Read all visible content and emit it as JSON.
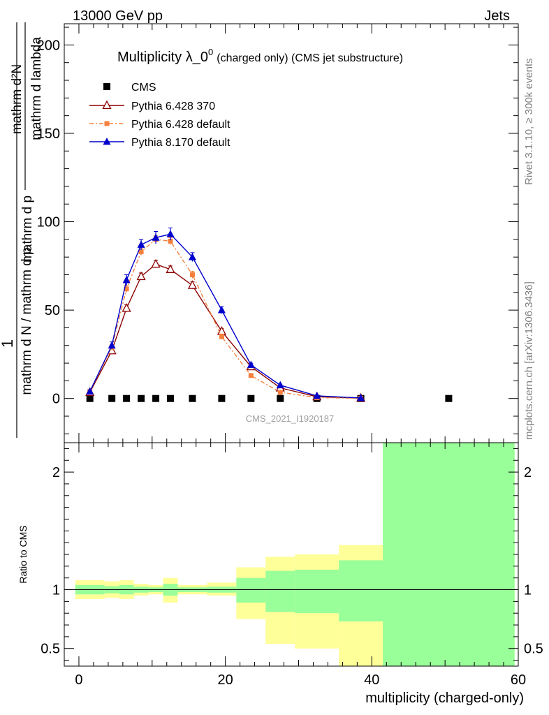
{
  "header": {
    "energy": "13000 GeV pp",
    "category": "Jets"
  },
  "side_labels": {
    "rivet": "Rivet 3.1.10, ≥ 300k events",
    "mcplots": "mcplots.cern.ch [arXiv:1306.3436]"
  },
  "watermark": "CMS_2021_I1920187",
  "colors": {
    "cms": "#000000",
    "pythia6_370": "#8b0000",
    "pythia6_default": "#f5803e",
    "pythia8_default": "#0000cc",
    "band_outer": "#ffff99",
    "band_inner": "#99ff99"
  },
  "chart_data": [
    {
      "type": "line",
      "title_main": "Multiplicity λ_0",
      "title_sup": "0",
      "title_suffix": "(charged only) (CMS jet substructure)",
      "ylabel_numerator": "1",
      "ylabel_denominator": "mathrm d N / mathrm d p",
      "ylabel_middle": "mathrm d p",
      "ylabel_main_numerator": "mathrm d²N",
      "ylabel_main_denominator": "mathrm d lambda",
      "xlim": [
        -2,
        60
      ],
      "ylim": [
        -25,
        212
      ],
      "yticks": [
        0,
        50,
        100,
        150,
        200
      ],
      "ytick_labels": [
        "0",
        "50",
        "100",
        "150",
        "200"
      ],
      "legend_position": "top-left",
      "series": [
        {
          "name": "CMS",
          "marker": "square",
          "x": [
            1.5,
            4.5,
            6.5,
            8.5,
            10.5,
            12.5,
            15.5,
            19.5,
            23.5,
            27.5,
            32.5,
            38.5,
            50.5
          ],
          "y": [
            0,
            0,
            0,
            0,
            0,
            0,
            0,
            0,
            0,
            0,
            0,
            0,
            0
          ]
        },
        {
          "name": "Pythia 6.428 370",
          "marker": "open-triangle",
          "x": [
            1.5,
            4.5,
            6.5,
            8.5,
            10.5,
            12.5,
            15.5,
            19.5,
            23.5,
            27.5,
            32.5,
            38.5
          ],
          "y": [
            3.5,
            27,
            51,
            69,
            76,
            73,
            64,
            38,
            18,
            6,
            1,
            0.2
          ],
          "err": [
            0.5,
            1.5,
            2,
            2,
            2,
            2,
            2,
            1.5,
            1,
            0.5,
            0.3,
            0.1
          ]
        },
        {
          "name": "Pythia 6.428 default",
          "marker": "square-small",
          "x": [
            1.5,
            4.5,
            6.5,
            8.5,
            10.5,
            12.5,
            15.5,
            19.5,
            23.5,
            27.5,
            32.5,
            38.5
          ],
          "y": [
            4,
            29,
            62,
            83,
            90,
            89,
            70,
            35,
            13,
            3.5,
            0.5,
            0.1
          ],
          "err": [
            0.5,
            1.5,
            2,
            2,
            2,
            2,
            2,
            1.5,
            1,
            0.5,
            0.3,
            0.1
          ]
        },
        {
          "name": "Pythia 8.170 default",
          "marker": "filled-triangle",
          "x": [
            1.5,
            4.5,
            6.5,
            8.5,
            10.5,
            12.5,
            15.5,
            19.5,
            23.5,
            27.5,
            32.5,
            38.5
          ],
          "y": [
            4,
            30,
            67,
            87,
            91,
            93,
            80,
            50,
            19,
            7.5,
            1.5,
            0.3
          ],
          "err": [
            0.6,
            2,
            3,
            3,
            3.5,
            3.5,
            2.5,
            2,
            1,
            0.6,
            0.3,
            0.1
          ]
        }
      ]
    },
    {
      "type": "area",
      "ylabel": "Ratio to CMS",
      "xlabel": "multiplicity (charged-only)",
      "xlim": [
        -2,
        60
      ],
      "ylim": [
        0.35,
        2.25
      ],
      "xticks": [
        0,
        20,
        40,
        60
      ],
      "xtick_labels": [
        "0",
        "20",
        "40",
        "60"
      ],
      "yticks": [
        0.5,
        1,
        2
      ],
      "ytick_labels": [
        "0.5",
        "1",
        "2"
      ],
      "reference_line": 1,
      "bins": [
        {
          "lo": -0.5,
          "hi": 3.5,
          "outer": [
            0.92,
            1.08
          ],
          "inner": [
            0.96,
            1.04
          ]
        },
        {
          "lo": 3.5,
          "hi": 5.5,
          "outer": [
            0.93,
            1.07
          ],
          "inner": [
            0.97,
            1.03
          ]
        },
        {
          "lo": 5.5,
          "hi": 7.5,
          "outer": [
            0.92,
            1.08
          ],
          "inner": [
            0.96,
            1.04
          ]
        },
        {
          "lo": 7.5,
          "hi": 9.5,
          "outer": [
            0.95,
            1.05
          ],
          "inner": [
            0.975,
            1.025
          ]
        },
        {
          "lo": 9.5,
          "hi": 11.5,
          "outer": [
            0.96,
            1.04
          ],
          "inner": [
            0.98,
            1.02
          ]
        },
        {
          "lo": 11.5,
          "hi": 13.5,
          "outer": [
            0.89,
            1.1
          ],
          "inner": [
            0.95,
            1.05
          ]
        },
        {
          "lo": 13.5,
          "hi": 17.5,
          "outer": [
            0.96,
            1.04
          ],
          "inner": [
            0.98,
            1.02
          ]
        },
        {
          "lo": 17.5,
          "hi": 21.5,
          "outer": [
            0.95,
            1.06
          ],
          "inner": [
            0.975,
            1.025
          ]
        },
        {
          "lo": 21.5,
          "hi": 25.5,
          "outer": [
            0.75,
            1.19
          ],
          "inner": [
            0.89,
            1.1
          ]
        },
        {
          "lo": 25.5,
          "hi": 29.5,
          "outer": [
            0.54,
            1.28
          ],
          "inner": [
            0.81,
            1.16
          ]
        },
        {
          "lo": 29.5,
          "hi": 35.5,
          "outer": [
            0.5,
            1.3
          ],
          "inner": [
            0.8,
            1.17
          ]
        },
        {
          "lo": 35.5,
          "hi": 41.5,
          "outer": [
            0.35,
            1.38
          ],
          "inner": [
            0.73,
            1.25
          ]
        },
        {
          "lo": 41.5,
          "hi": 59.5,
          "outer": [
            0.35,
            2.25
          ],
          "inner": [
            0.35,
            2.25
          ]
        }
      ]
    }
  ]
}
